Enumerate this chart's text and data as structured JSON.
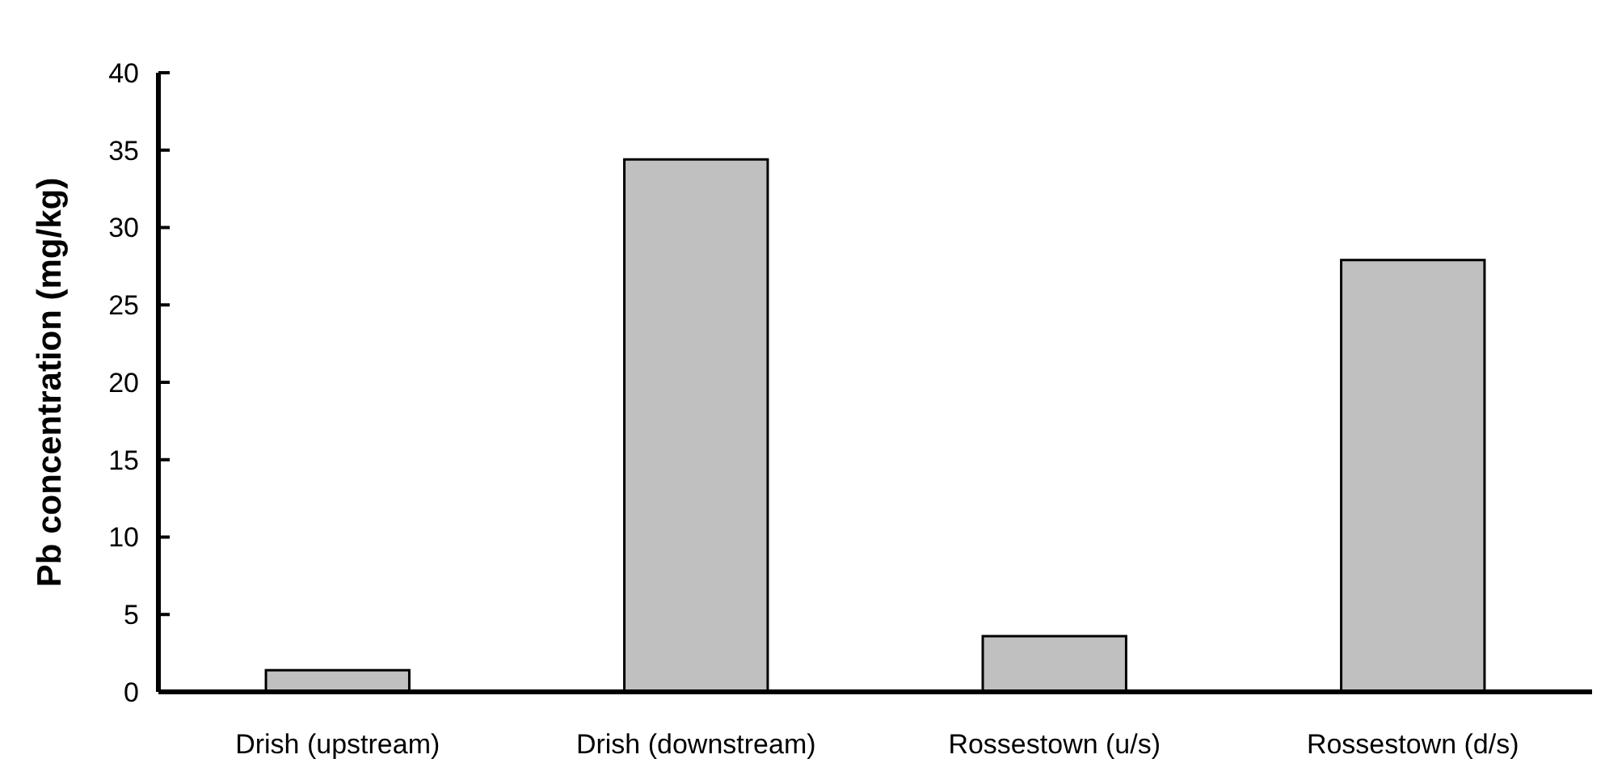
{
  "chart_data": {
    "type": "bar",
    "ylabel": "Pb concentration (mg/kg)",
    "categories": [
      "Drish (upstream)",
      "Drish (downstream)",
      "Rossestown (u/s)",
      "Rossestown (d/s)"
    ],
    "values": [
      1.4,
      34.4,
      3.6,
      27.9
    ],
    "color": "#c0c0c0",
    "ylim": [
      0,
      40
    ],
    "yticks": [
      0,
      5,
      10,
      15,
      20,
      25,
      30,
      35,
      40
    ]
  }
}
